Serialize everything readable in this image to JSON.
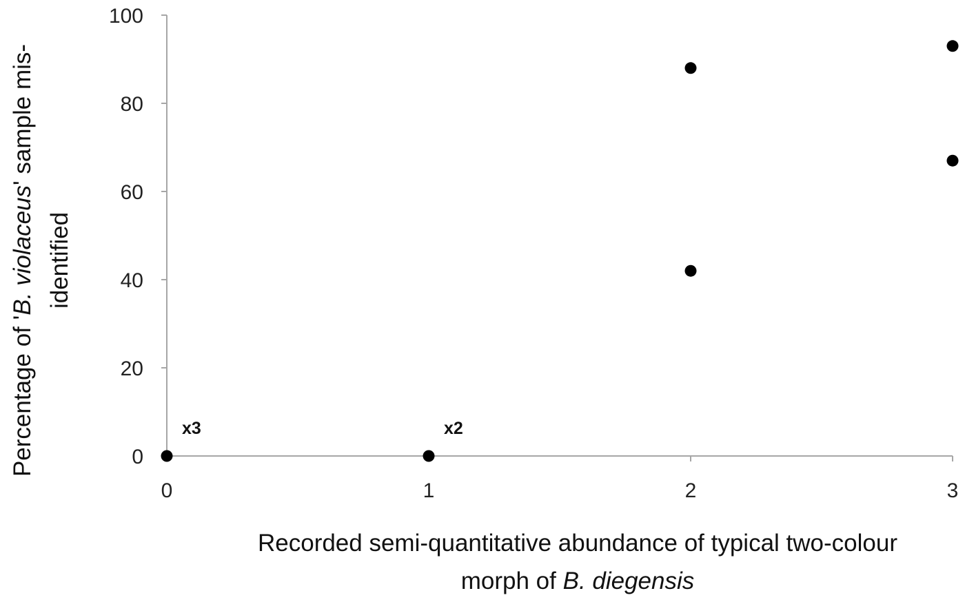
{
  "chart_data": {
    "type": "scatter",
    "title": "",
    "xlabel": {
      "line1": "Recorded semi-quantitative abundance of typical two-colour",
      "line2_prefix": "morph of ",
      "line2_italic": "B. diegensis"
    },
    "ylabel": {
      "line1_prefix": "Percentage of '",
      "line1_italic": "B. violaceus",
      "line1_suffix": "' sample mis-",
      "line2": "identified"
    },
    "xlim": [
      0,
      3
    ],
    "ylim": [
      0,
      100
    ],
    "x_ticks": [
      0,
      1,
      2,
      3
    ],
    "y_ticks": [
      0,
      20,
      40,
      60,
      80,
      100
    ],
    "grid": false,
    "legend": "none",
    "marker_color": "#000000",
    "axis_color": "#a6a6a6",
    "points": [
      {
        "x": 0,
        "y": 0
      },
      {
        "x": 1,
        "y": 0
      },
      {
        "x": 2,
        "y": 88
      },
      {
        "x": 2,
        "y": 42
      },
      {
        "x": 3,
        "y": 93
      },
      {
        "x": 3,
        "y": 67
      }
    ],
    "annotations": [
      {
        "text": "x3",
        "x": 0,
        "y": 0
      },
      {
        "text": "x2",
        "x": 1,
        "y": 0
      }
    ]
  }
}
